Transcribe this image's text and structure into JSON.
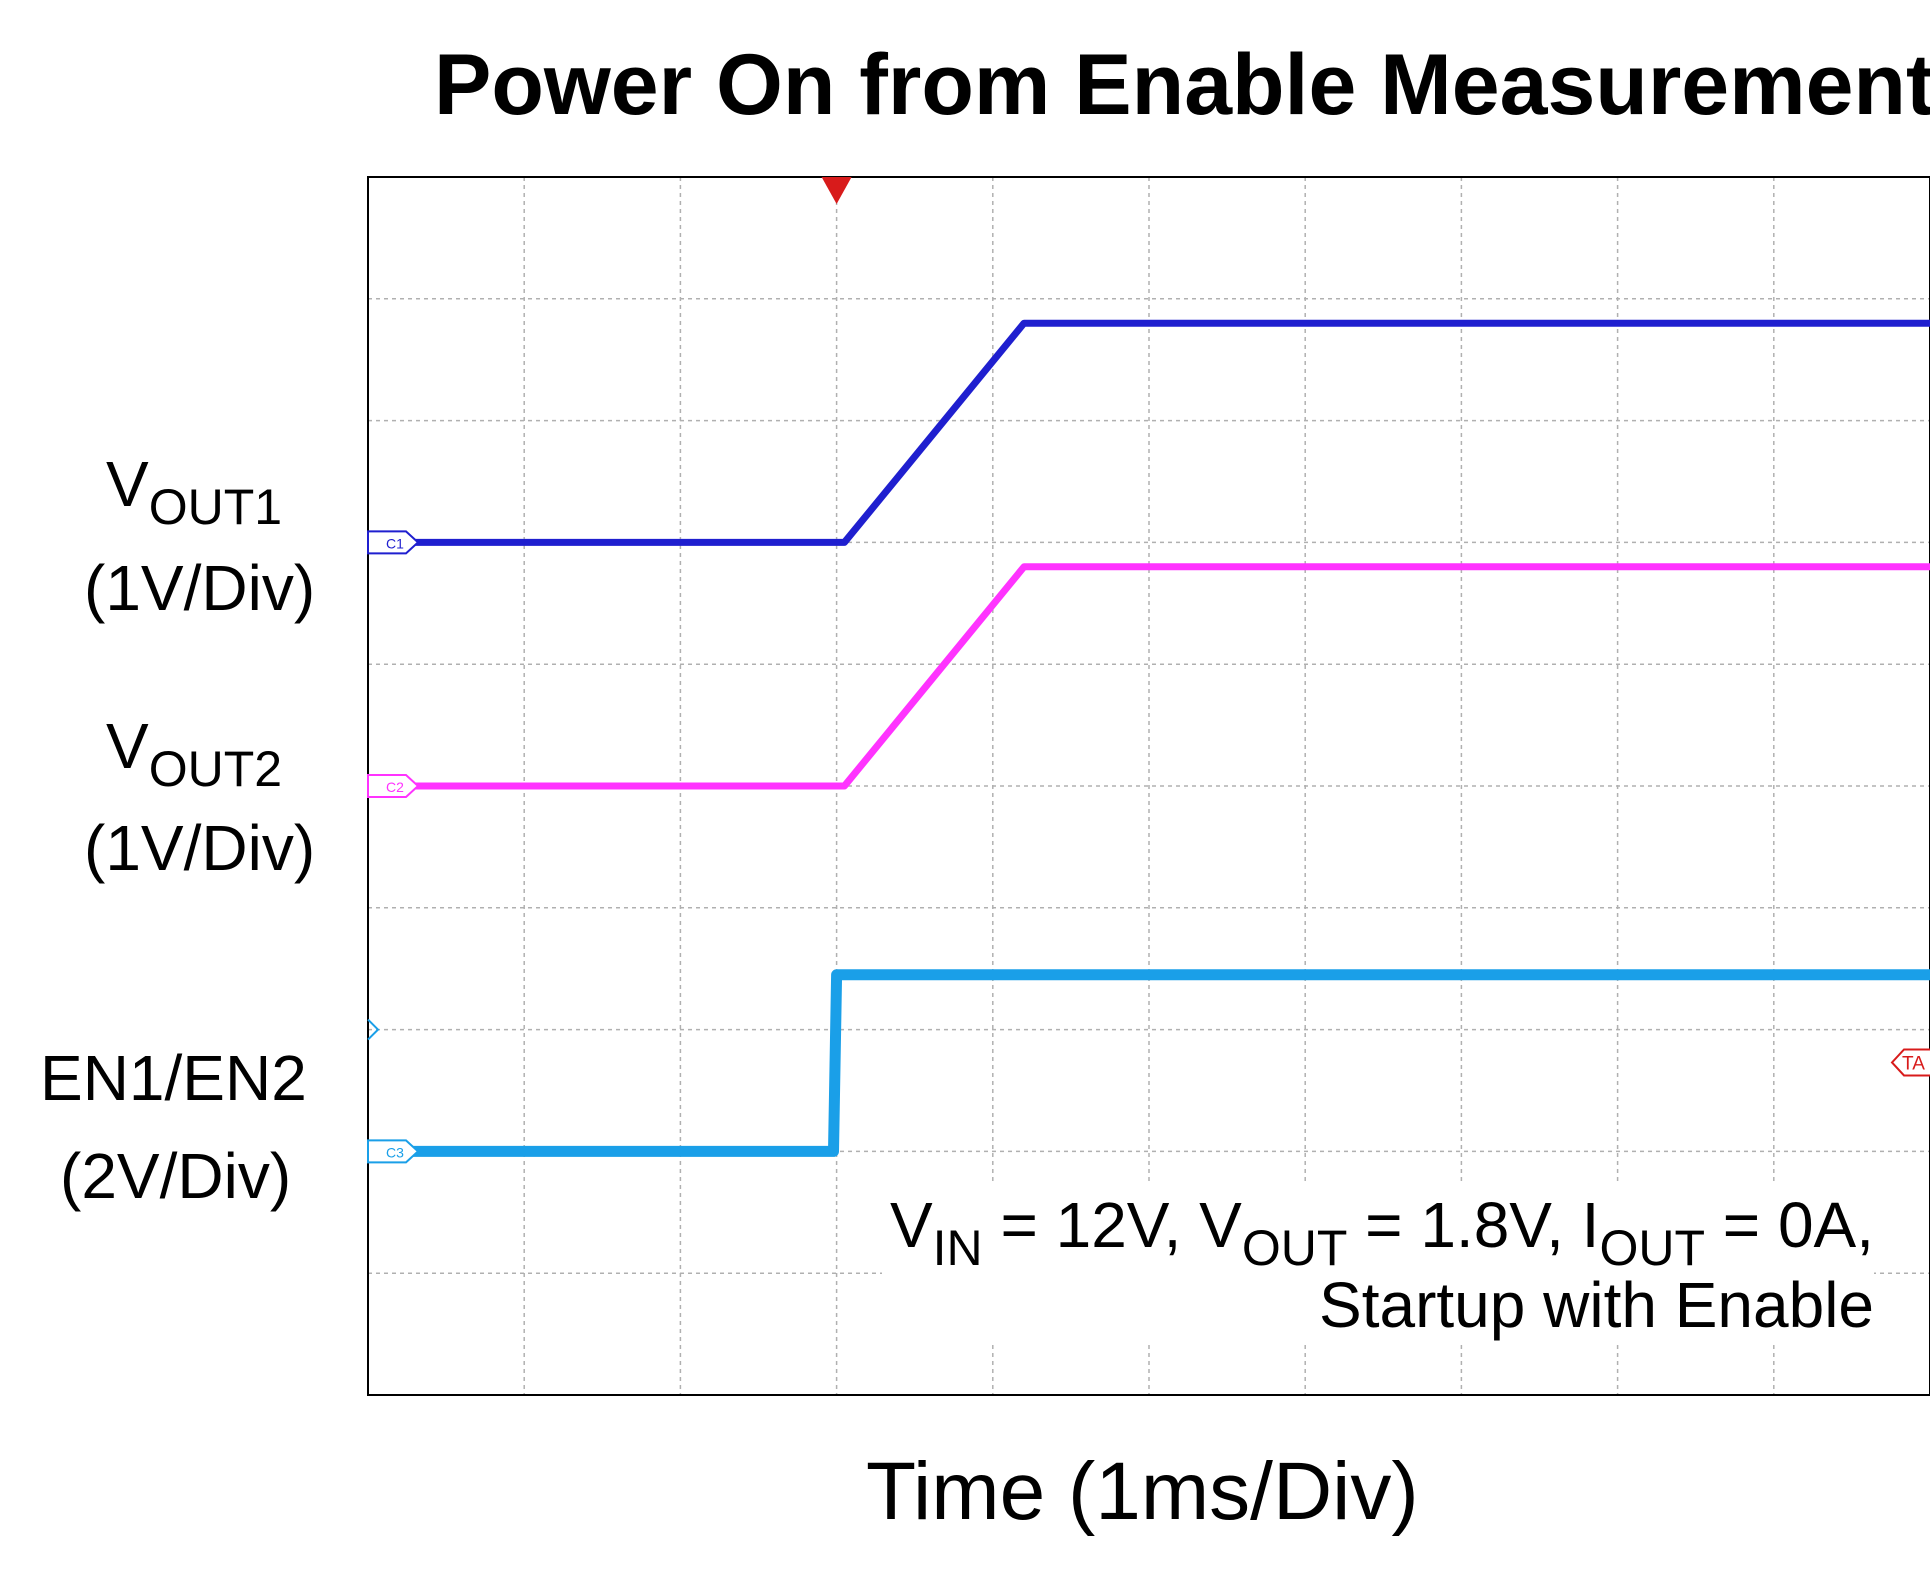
{
  "title": "Power On from Enable Measurement",
  "xlabel": "Time (1ms/Div)",
  "channels": {
    "vout1": {
      "main": "V",
      "sub": "OUT1",
      "scale": "(1V/Div)"
    },
    "vout2": {
      "main": "V",
      "sub": "OUT2",
      "scale": "(1V/Div)"
    },
    "en": {
      "name": "EN1/EN2",
      "scale": "(2V/Div)"
    }
  },
  "markers": {
    "c1": "C1",
    "c2": "C2",
    "c3": "C3",
    "trigger": "TA"
  },
  "conditions": {
    "vin_main": "V",
    "vin_sub": "IN",
    "vin_rest": " = 12V, ",
    "vout_main": "V",
    "vout_sub": "OUT",
    "vout_rest": " = 1.8V, ",
    "iout_main": "I",
    "iout_sub": "OUT",
    "iout_rest": " = 0A,",
    "line2": "Startup with Enable"
  },
  "colors": {
    "vout1": "#1f1fcf",
    "vout2": "#ff33ff",
    "en": "#1a9fe8",
    "trigger": "#d81b1b",
    "grid": "#b0b0b0"
  },
  "chart_data": {
    "type": "line",
    "x_unit": "division (1ms/Div)",
    "xlim": [
      0,
      10
    ],
    "ylim": [
      0,
      10
    ],
    "grid": true,
    "trigger_time_div": 3,
    "series": [
      {
        "name": "VOUT1",
        "scale": "1V/Div",
        "ground_div": 7,
        "x": [
          0,
          3.05,
          4.2,
          10
        ],
        "y": [
          0,
          0,
          1.8,
          1.8
        ]
      },
      {
        "name": "VOUT2",
        "scale": "1V/Div",
        "ground_div": 5,
        "x": [
          0,
          3.05,
          4.2,
          10
        ],
        "y": [
          0,
          0,
          1.8,
          1.8
        ]
      },
      {
        "name": "EN1/EN2",
        "scale": "2V/Div",
        "ground_div": 2,
        "x": [
          0,
          2.98,
          3.0,
          10
        ],
        "y": [
          0,
          0,
          2.9,
          2.9
        ]
      }
    ]
  }
}
